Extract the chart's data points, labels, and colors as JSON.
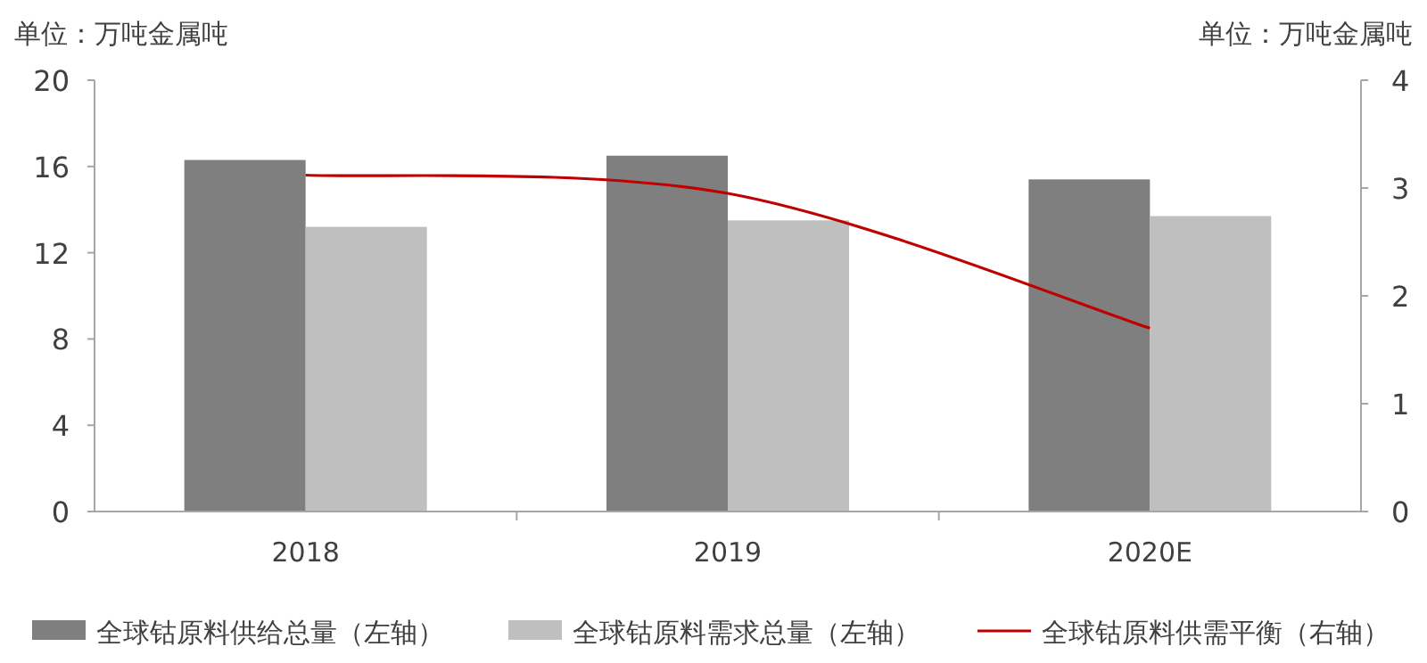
{
  "chart_data": {
    "type": "bar",
    "ylabel": "单位：万吨金属吨",
    "y2label": "单位：万吨金属吨",
    "categories": [
      "2018",
      "2019",
      "2020E"
    ],
    "series": [
      {
        "name": "全球钴原料供给总量（左轴）",
        "color": "#7f7f7f",
        "values": [
          16.3,
          16.5,
          15.4
        ]
      },
      {
        "name": "全球钴原料需求总量（左轴）",
        "color": "#bfbfbf",
        "values": [
          13.2,
          13.5,
          13.7
        ]
      },
      {
        "name": "全球钴原料供需平衡（右轴）",
        "type": "line",
        "axis": "y2",
        "color": "#c00000",
        "values": [
          3.12,
          2.95,
          1.7
        ]
      }
    ],
    "ylim": [
      0,
      20
    ],
    "yticks": [
      0,
      4,
      8,
      12,
      16,
      20
    ],
    "y2lim": [
      0,
      4
    ],
    "y2ticks": [
      0,
      1,
      2,
      3,
      4
    ],
    "grid": false,
    "legend": "bottom"
  }
}
